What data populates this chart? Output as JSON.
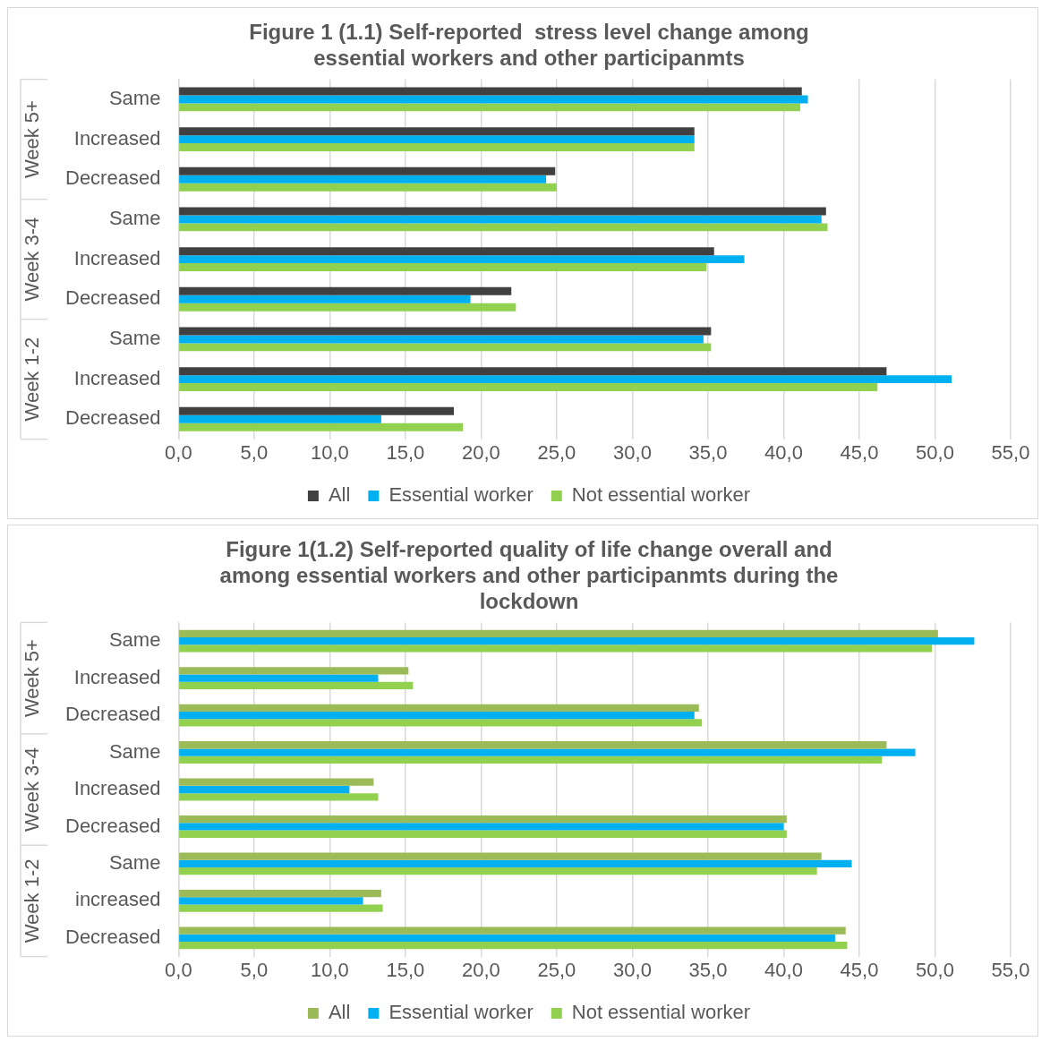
{
  "chart_data": [
    {
      "type": "bar",
      "orientation": "horizontal",
      "title": "Figure 1 (1.1) Self-reported  stress level change among essential workers and other participanmts",
      "categories": [
        "Same",
        "Increased",
        "Decreased",
        "Same",
        "Increased",
        "Decreased",
        "Same",
        "Increased",
        "Decreased"
      ],
      "annotations": [
        "Week 5+",
        "Week 3-4",
        "Week 1-2"
      ],
      "series": [
        {
          "name": "All",
          "color": "#404040",
          "values": [
            41.2,
            34.1,
            24.9,
            42.8,
            35.4,
            22.0,
            35.2,
            46.8,
            18.2
          ]
        },
        {
          "name": "Essential worker",
          "color": "#00b0f0",
          "values": [
            41.6,
            34.1,
            24.3,
            42.5,
            37.4,
            19.3,
            34.7,
            51.1,
            13.4
          ]
        },
        {
          "name": "Not essential worker",
          "color": "#92d050",
          "values": [
            41.1,
            34.1,
            25.0,
            42.9,
            34.9,
            22.3,
            35.2,
            46.2,
            18.8
          ]
        }
      ],
      "xlim": [
        0,
        55
      ],
      "xticks": [
        {
          "value": 0,
          "label": "0,0"
        },
        {
          "value": 5,
          "label": "5,0"
        },
        {
          "value": 10,
          "label": "10,0"
        },
        {
          "value": 15,
          "label": "15,0"
        },
        {
          "value": 20,
          "label": "20,0"
        },
        {
          "value": 25,
          "label": "25,0"
        },
        {
          "value": 30,
          "label": "30,0"
        },
        {
          "value": 35,
          "label": "35,0"
        },
        {
          "value": 40,
          "label": "40,0"
        },
        {
          "value": 45,
          "label": "45,0"
        },
        {
          "value": 50,
          "label": "50,0"
        },
        {
          "value": 55,
          "label": "55,0"
        }
      ],
      "grid": "x",
      "legend": "bottom"
    },
    {
      "type": "bar",
      "orientation": "horizontal",
      "title": "Figure 1(1.2) Self-reported quality of life change overall and among essential workers and other participanmts during the lockdown",
      "categories": [
        "Same",
        "Increased",
        "Decreased",
        "Same",
        "Increased",
        "Decreased",
        "Same",
        "increased",
        "Decreased"
      ],
      "annotations": [
        "Week 5+",
        "Week 3-4",
        "Week 1-2"
      ],
      "series": [
        {
          "name": "All",
          "color": "#9bbb59",
          "values": [
            50.2,
            15.2,
            34.4,
            46.8,
            12.9,
            40.2,
            42.5,
            13.4,
            44.1
          ]
        },
        {
          "name": "Essential worker",
          "color": "#00b0f0",
          "values": [
            52.6,
            13.2,
            34.1,
            48.7,
            11.3,
            40.0,
            44.5,
            12.2,
            43.4
          ]
        },
        {
          "name": "Not essential worker",
          "color": "#92d050",
          "values": [
            49.8,
            15.5,
            34.6,
            46.5,
            13.2,
            40.2,
            42.2,
            13.5,
            44.2
          ]
        }
      ],
      "xlim": [
        0,
        55
      ],
      "xticks": [
        {
          "value": 0,
          "label": "0,0"
        },
        {
          "value": 5,
          "label": "5,0"
        },
        {
          "value": 10,
          "label": "10,0"
        },
        {
          "value": 15,
          "label": "15,0"
        },
        {
          "value": 20,
          "label": "20,0"
        },
        {
          "value": 25,
          "label": "25,0"
        },
        {
          "value": 30,
          "label": "30,0"
        },
        {
          "value": 35,
          "label": "35,0"
        },
        {
          "value": 40,
          "label": "40,0"
        },
        {
          "value": 45,
          "label": "45,0"
        },
        {
          "value": 50,
          "label": "50,0"
        },
        {
          "value": 55,
          "label": "55,0"
        }
      ],
      "grid": "x",
      "legend": "bottom"
    }
  ]
}
